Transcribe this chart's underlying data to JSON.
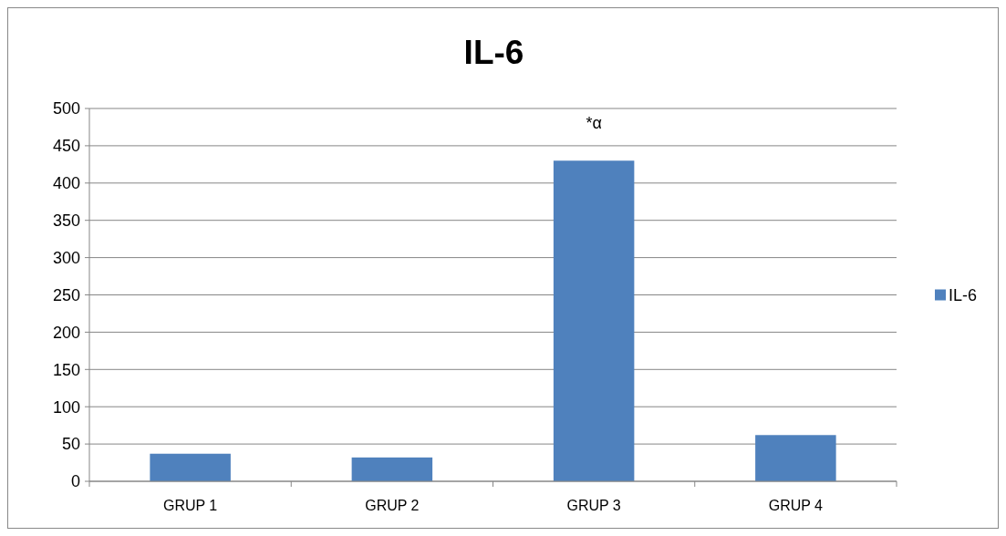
{
  "chart_data": {
    "type": "bar",
    "title": "IL-6",
    "categories": [
      "GRUP 1",
      "GRUP 2",
      "GRUP 3",
      "GRUP 4"
    ],
    "series": [
      {
        "name": "IL-6",
        "color": "#4f81bd",
        "values": [
          37,
          32,
          430,
          62
        ]
      }
    ],
    "ylim": [
      0,
      500
    ],
    "yticks": [
      0,
      50,
      100,
      150,
      200,
      250,
      300,
      350,
      400,
      450,
      500
    ],
    "grid": "y",
    "legend": "right",
    "annotations": [
      "*α"
    ]
  }
}
